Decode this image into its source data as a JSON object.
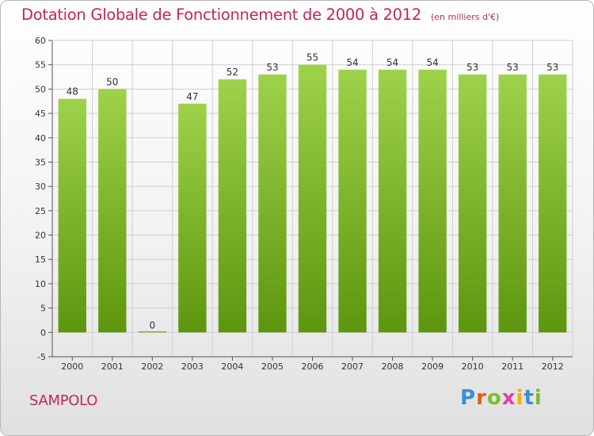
{
  "title": "Dotation Globale de Fonctionnement de 2000 à 2012",
  "unit_note": "(en milliers d'€)",
  "commune": "SAMPOLO",
  "logo": {
    "text": "Proxiti",
    "letter_colors": [
      "#3a8ed6",
      "#e65a1c",
      "#7cbd2e",
      "#e63fa2",
      "#f0b400",
      "#3a8ed6",
      "#7cbd2e"
    ]
  },
  "colors": {
    "title": "#c4245a",
    "bar_top": "#9ed24a",
    "bar_bottom": "#5d960e",
    "grid": "#cfcfcf"
  },
  "chart_data": {
    "type": "bar",
    "title": "Dotation Globale de Fonctionnement de 2000 à 2012",
    "subtitle": "(en milliers d'€)",
    "categories": [
      "2000",
      "2001",
      "2002",
      "2003",
      "2004",
      "2005",
      "2006",
      "2007",
      "2008",
      "2009",
      "2010",
      "2011",
      "2012"
    ],
    "values": [
      48,
      50,
      0,
      47,
      52,
      53,
      55,
      54,
      54,
      54,
      53,
      53,
      53
    ],
    "value_labels": [
      "48",
      "50",
      "0",
      "47",
      "52",
      "53",
      "55",
      "54",
      "54",
      "54",
      "53",
      "53",
      "53"
    ],
    "ylim": [
      -5,
      60
    ],
    "yticks": [
      -5,
      0,
      5,
      10,
      15,
      20,
      25,
      30,
      35,
      40,
      45,
      50,
      55,
      60
    ],
    "grid": true
  }
}
